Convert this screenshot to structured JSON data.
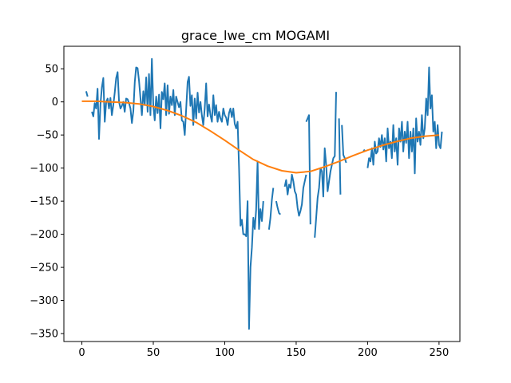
{
  "chart_data": {
    "type": "line",
    "title": "grace_lwe_cm MOGAMI",
    "xlabel": "",
    "ylabel": "",
    "xlim": [
      -12.6,
      264.6
    ],
    "ylim": [
      -362,
      84
    ],
    "xticks": [
      0,
      50,
      100,
      150,
      200,
      250
    ],
    "xtick_labels": [
      "0",
      "50",
      "100",
      "150",
      "200",
      "250"
    ],
    "yticks": [
      50,
      0,
      -50,
      -100,
      -150,
      -200,
      -250,
      -300,
      -350
    ],
    "ytick_labels": [
      "50",
      "0",
      "−50",
      "−100",
      "−150",
      "−200",
      "−250",
      "−300",
      "−350"
    ],
    "grid": false,
    "series": [
      {
        "color": "#1f77b4",
        "style": "raw",
        "segments": [
          [
            [
              3,
              16
            ],
            [
              4,
              8
            ]
          ],
          [
            [
              7,
              -15
            ],
            [
              8,
              -22
            ],
            [
              9,
              -2
            ],
            [
              10,
              -10
            ],
            [
              11,
              20
            ],
            [
              12,
              -56
            ],
            [
              13,
              -4
            ],
            [
              14,
              22
            ],
            [
              15,
              36
            ],
            [
              16,
              -30
            ],
            [
              17,
              0
            ],
            [
              18,
              5
            ],
            [
              19,
              -10
            ],
            [
              20,
              6
            ],
            [
              21,
              -20
            ],
            [
              22,
              -5
            ],
            [
              23,
              14
            ],
            [
              24,
              36
            ],
            [
              25,
              45
            ],
            [
              26,
              0
            ],
            [
              27,
              -10
            ],
            [
              28,
              -6
            ],
            [
              29,
              0
            ],
            [
              30,
              -15
            ],
            [
              31,
              5
            ],
            [
              32,
              4
            ],
            [
              33,
              -2
            ],
            [
              34,
              -10
            ],
            [
              35,
              -32
            ],
            [
              36,
              -14
            ],
            [
              37,
              30
            ],
            [
              38,
              52
            ],
            [
              39,
              51
            ],
            [
              40,
              32
            ],
            [
              41,
              6
            ],
            [
              42,
              -20
            ],
            [
              43,
              16
            ],
            [
              44,
              -5
            ],
            [
              45,
              37
            ],
            [
              46,
              -15
            ],
            [
              47,
              42
            ],
            [
              48,
              -20
            ],
            [
              49,
              65
            ],
            [
              50,
              -5
            ],
            [
              51,
              -28
            ],
            [
              52,
              8
            ],
            [
              53,
              -17
            ],
            [
              54,
              11
            ],
            [
              55,
              -40
            ],
            [
              56,
              15
            ],
            [
              57,
              4
            ],
            [
              58,
              28
            ],
            [
              59,
              -20
            ],
            [
              60,
              25
            ],
            [
              61,
              -18
            ],
            [
              62,
              8
            ],
            [
              63,
              -5
            ],
            [
              64,
              18
            ],
            [
              65,
              -20
            ],
            [
              66,
              8
            ],
            [
              67,
              0
            ],
            [
              68,
              -8
            ],
            [
              69,
              0
            ],
            [
              70,
              -28
            ],
            [
              71,
              -30
            ],
            [
              72,
              -50
            ],
            [
              73,
              -10
            ],
            [
              74,
              30
            ],
            [
              75,
              38
            ],
            [
              76,
              -6
            ],
            [
              77,
              10
            ],
            [
              78,
              -35
            ],
            [
              79,
              5
            ],
            [
              80,
              -25
            ],
            [
              81,
              14
            ],
            [
              82,
              -16
            ],
            [
              83,
              0
            ],
            [
              84,
              -20
            ],
            [
              85,
              -35
            ],
            [
              86,
              -10
            ],
            [
              87,
              28
            ],
            [
              88,
              -22
            ],
            [
              89,
              -4
            ],
            [
              90,
              -20
            ],
            [
              91,
              -30
            ],
            [
              92,
              10
            ],
            [
              93,
              -20
            ],
            [
              94,
              -5
            ],
            [
              95,
              -30
            ],
            [
              96,
              -15
            ],
            [
              97,
              -25
            ],
            [
              98,
              -30
            ],
            [
              99,
              -10
            ],
            [
              100,
              -20
            ],
            [
              101,
              -24
            ],
            [
              102,
              -35
            ],
            [
              103,
              -17
            ],
            [
              104,
              -10
            ],
            [
              105,
              -23
            ],
            [
              106,
              -10
            ],
            [
              107,
              -33
            ],
            [
              108,
              -40
            ],
            [
              109,
              -30
            ],
            [
              110,
              -100
            ],
            [
              111,
              -187
            ],
            [
              112,
              -178
            ],
            [
              113,
              -200
            ],
            [
              114,
              -200
            ],
            [
              115,
              -203
            ],
            [
              116,
              -150
            ],
            [
              117,
              -343
            ],
            [
              118,
              -250
            ],
            [
              119,
              -220
            ],
            [
              120,
              -175
            ],
            [
              121,
              -192
            ],
            [
              122,
              -163
            ],
            [
              123,
              -90
            ],
            [
              124,
              -192
            ],
            [
              125,
              -162
            ],
            [
              126,
              -180
            ],
            [
              127,
              -150
            ]
          ],
          [
            [
              131,
              -193
            ],
            [
              132,
              -175
            ],
            [
              133,
              -148
            ],
            [
              134,
              -130
            ]
          ],
          [
            [
              136,
              -150
            ],
            [
              137,
              -160
            ],
            [
              138,
              -168
            ],
            [
              139,
              -170
            ]
          ],
          [
            [
              142,
              -128
            ],
            [
              143,
              -118
            ],
            [
              144,
              -140
            ],
            [
              145,
              -125
            ],
            [
              146,
              -130
            ],
            [
              147,
              -110
            ],
            [
              148,
              -120
            ],
            [
              149,
              -135
            ],
            [
              150,
              -140
            ],
            [
              151,
              -160
            ],
            [
              152,
              -172
            ],
            [
              153,
              -165
            ],
            [
              154,
              -155
            ],
            [
              155,
              -130
            ],
            [
              156,
              -120
            ],
            [
              157,
              -110
            ]
          ],
          [
            [
              157,
              -30
            ],
            [
              158,
              -25
            ],
            [
              159,
              -20
            ],
            [
              160,
              -185
            ]
          ],
          [
            [
              163,
              -205
            ],
            [
              164,
              -175
            ],
            [
              165,
              -145
            ],
            [
              166,
              -130
            ],
            [
              167,
              -100
            ],
            [
              168,
              -105
            ],
            [
              169,
              -143
            ],
            [
              170,
              -70
            ],
            [
              171,
              -95
            ],
            [
              172,
              -135
            ],
            [
              173,
              -120
            ],
            [
              174,
              -105
            ],
            [
              175,
              -95
            ],
            [
              176,
              -85
            ],
            [
              177,
              -82
            ],
            [
              178,
              15
            ]
          ],
          [
            [
              180,
              -25
            ],
            [
              181,
              -140
            ]
          ],
          [
            [
              182,
              -35
            ],
            [
              183,
              -80
            ],
            [
              184,
              -85
            ],
            [
              185,
              -92
            ]
          ],
          [
            [
              197,
              -75
            ],
            [
              198,
              -72
            ]
          ],
          [
            [
              200,
              -100
            ],
            [
              201,
              -85
            ],
            [
              202,
              -90
            ],
            [
              203,
              -70
            ],
            [
              204,
              -95
            ],
            [
              205,
              -60
            ],
            [
              206,
              -78
            ],
            [
              207,
              -75
            ],
            [
              208,
              -55
            ],
            [
              209,
              -68
            ],
            [
              210,
              -50
            ],
            [
              211,
              -72
            ],
            [
              212,
              -55
            ],
            [
              213,
              -90
            ],
            [
              214,
              -40
            ],
            [
              215,
              -70
            ],
            [
              216,
              -60
            ],
            [
              217,
              -85
            ],
            [
              218,
              -35
            ],
            [
              219,
              -75
            ],
            [
              220,
              -55
            ],
            [
              221,
              -95
            ],
            [
              222,
              -40
            ],
            [
              223,
              -60
            ],
            [
              224,
              -30
            ],
            [
              225,
              -75
            ],
            [
              226,
              -45
            ],
            [
              227,
              -62
            ],
            [
              228,
              -30
            ],
            [
              229,
              -85
            ],
            [
              230,
              -45
            ],
            [
              231,
              -75
            ],
            [
              232,
              -40
            ],
            [
              233,
              -108
            ],
            [
              234,
              -25
            ],
            [
              235,
              -60
            ],
            [
              236,
              -45
            ],
            [
              237,
              -65
            ],
            [
              238,
              -20
            ],
            [
              239,
              -55
            ],
            [
              240,
              -40
            ],
            [
              241,
              5
            ],
            [
              242,
              -20
            ],
            [
              243,
              52
            ],
            [
              244,
              -10
            ],
            [
              245,
              10
            ],
            [
              246,
              -45
            ],
            [
              247,
              -30
            ],
            [
              248,
              -70
            ],
            [
              249,
              -35
            ],
            [
              250,
              -65
            ],
            [
              251,
              -70
            ],
            [
              252,
              -45
            ]
          ]
        ]
      },
      {
        "color": "#ff7f0e",
        "style": "smooth",
        "segments": [
          [
            [
              0,
              1
            ],
            [
              10,
              1
            ],
            [
              20,
              0
            ],
            [
              30,
              -1
            ],
            [
              40,
              -3
            ],
            [
              50,
              -7
            ],
            [
              60,
              -13
            ],
            [
              70,
              -21
            ],
            [
              80,
              -31
            ],
            [
              90,
              -44
            ],
            [
              100,
              -58
            ],
            [
              110,
              -73
            ],
            [
              120,
              -87
            ],
            [
              130,
              -97
            ],
            [
              140,
              -104
            ],
            [
              150,
              -107
            ],
            [
              160,
              -105
            ],
            [
              170,
              -98
            ],
            [
              180,
              -90
            ],
            [
              190,
              -81
            ],
            [
              200,
              -73
            ],
            [
              210,
              -66
            ],
            [
              220,
              -60
            ],
            [
              230,
              -55
            ],
            [
              240,
              -52
            ],
            [
              250,
              -50
            ]
          ]
        ]
      }
    ]
  }
}
